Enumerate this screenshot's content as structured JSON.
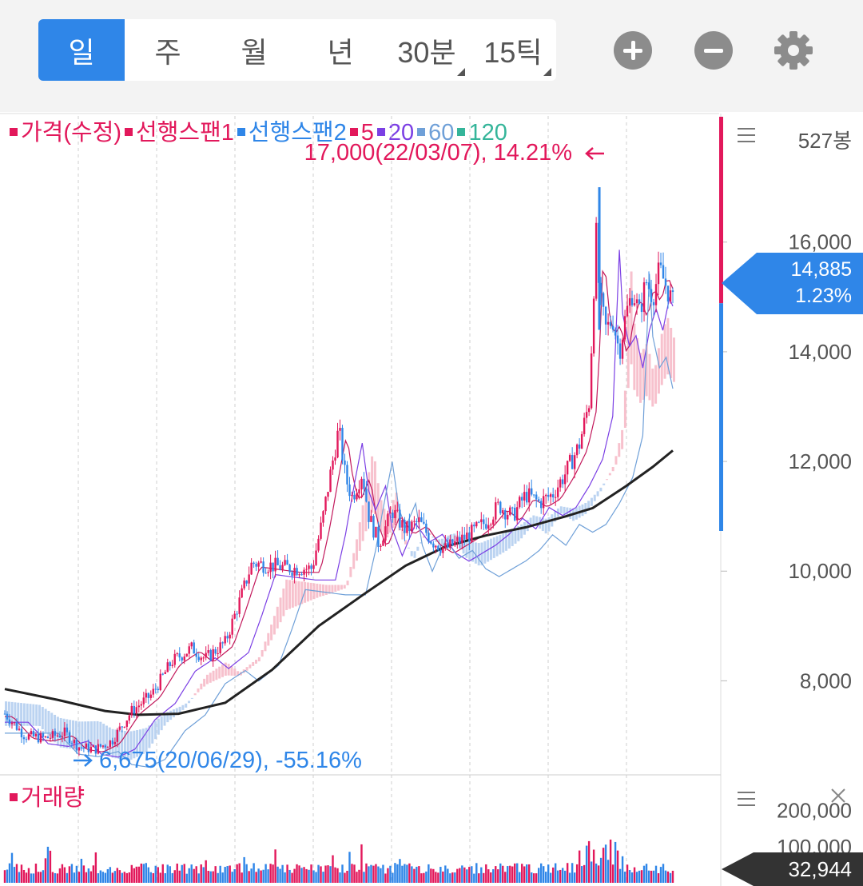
{
  "tabs": [
    {
      "label": "일",
      "active": true
    },
    {
      "label": "주",
      "active": false
    },
    {
      "label": "월",
      "active": false
    },
    {
      "label": "년",
      "active": false
    },
    {
      "label": "30분",
      "active": false,
      "dropdown": true
    },
    {
      "label": "15틱",
      "active": false,
      "dropdown": true
    }
  ],
  "controls": {
    "zoom_in": "plus-icon",
    "zoom_out": "minus-icon",
    "settings": "gear-icon"
  },
  "legend": [
    {
      "label": "가격(수정)",
      "color": "#e2185b"
    },
    {
      "label": "선행스팬1",
      "color": "#e2185b"
    },
    {
      "label": "선행스팬2",
      "color": "#2f86e8"
    },
    {
      "label": "5",
      "color": "#e2185b"
    },
    {
      "label": "20",
      "color": "#7b3fe4"
    },
    {
      "label": "60",
      "color": "#6fa0d8"
    },
    {
      "label": "120",
      "color": "#35b59a"
    }
  ],
  "bar_count": "527봉",
  "volume_label": "거래량",
  "colors": {
    "up": "#e2185b",
    "down": "#2f86e8",
    "accent": "#2f86e8",
    "cloud_up": "#f5b2c0",
    "cloud_down": "#aac8ee"
  },
  "chart_data": {
    "type": "candlestick",
    "price_ylim": [
      6300,
      18300
    ],
    "price_ticks": [
      "16,000",
      "14,000",
      "12,000",
      "10,000",
      "8,000"
    ],
    "price_tick_values": [
      16000,
      14000,
      12000,
      10000,
      8000
    ],
    "high_annotation": {
      "text": "17,000(22/03/07), 14.21%",
      "value": 17000
    },
    "low_annotation": {
      "text": "6,675(20/06/29), -55.16%",
      "value": 6675
    },
    "current_price": "14,885",
    "current_change": "1.23%",
    "current_value": 14885,
    "price_path": [
      [
        0,
        7400
      ],
      [
        0.03,
        7000
      ],
      [
        0.06,
        6950
      ],
      [
        0.09,
        7050
      ],
      [
        0.11,
        6800
      ],
      [
        0.135,
        6750
      ],
      [
        0.16,
        6900
      ],
      [
        0.19,
        7450
      ],
      [
        0.22,
        7750
      ],
      [
        0.25,
        8350
      ],
      [
        0.28,
        8600
      ],
      [
        0.3,
        8400
      ],
      [
        0.33,
        8700
      ],
      [
        0.35,
        9400
      ],
      [
        0.37,
        10150
      ],
      [
        0.4,
        10100
      ],
      [
        0.43,
        10050
      ],
      [
        0.46,
        10050
      ],
      [
        0.475,
        10900
      ],
      [
        0.49,
        11950
      ],
      [
        0.5,
        12600
      ],
      [
        0.51,
        11700
      ],
      [
        0.52,
        11350
      ],
      [
        0.535,
        11800
      ],
      [
        0.545,
        11000
      ],
      [
        0.56,
        10500
      ],
      [
        0.58,
        11100
      ],
      [
        0.6,
        10750
      ],
      [
        0.62,
        10900
      ],
      [
        0.64,
        10550
      ],
      [
        0.66,
        10400
      ],
      [
        0.68,
        10550
      ],
      [
        0.7,
        10700
      ],
      [
        0.72,
        10900
      ],
      [
        0.74,
        11200
      ],
      [
        0.76,
        11000
      ],
      [
        0.78,
        11400
      ],
      [
        0.8,
        11250
      ],
      [
        0.82,
        11400
      ],
      [
        0.84,
        11800
      ],
      [
        0.86,
        12300
      ],
      [
        0.875,
        13100
      ],
      [
        0.885,
        16200
      ],
      [
        0.89,
        15000
      ],
      [
        0.9,
        14400
      ],
      [
        0.91,
        14600
      ],
      [
        0.92,
        14000
      ],
      [
        0.93,
        14700
      ],
      [
        0.94,
        15100
      ],
      [
        0.95,
        14700
      ],
      [
        0.96,
        15300
      ],
      [
        0.97,
        15000
      ],
      [
        0.98,
        15500
      ],
      [
        0.99,
        15200
      ],
      [
        1.0,
        14885
      ]
    ],
    "ma120_path": [
      [
        0,
        7850
      ],
      [
        0.08,
        7650
      ],
      [
        0.15,
        7450
      ],
      [
        0.2,
        7380
      ],
      [
        0.26,
        7400
      ],
      [
        0.33,
        7600
      ],
      [
        0.4,
        8200
      ],
      [
        0.47,
        9000
      ],
      [
        0.54,
        9600
      ],
      [
        0.6,
        10100
      ],
      [
        0.66,
        10450
      ],
      [
        0.72,
        10650
      ],
      [
        0.78,
        10800
      ],
      [
        0.84,
        11000
      ],
      [
        0.88,
        11150
      ],
      [
        0.93,
        11550
      ],
      [
        0.97,
        11900
      ],
      [
        1.0,
        12200
      ]
    ],
    "volume_ticks": [
      "200,000",
      "100,000"
    ],
    "volume_tick_values": [
      200000,
      100000
    ],
    "volume_ylim": [
      0,
      230000
    ],
    "current_volume": "32,944"
  }
}
